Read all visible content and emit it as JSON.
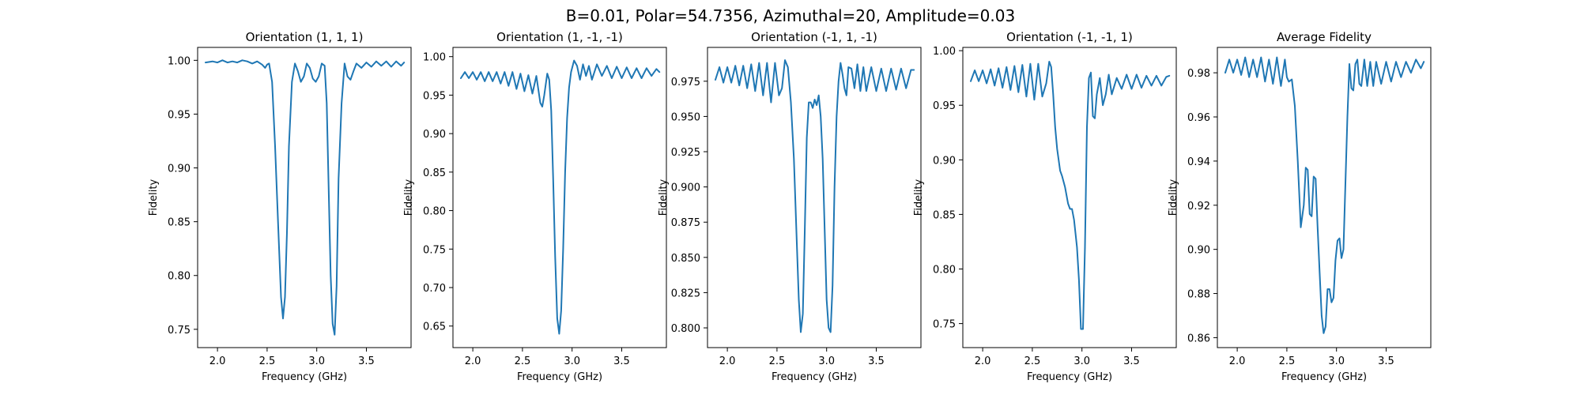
{
  "figure": {
    "suptitle": "B=0.01, Polar=54.7356, Azimuthal=20, Amplitude=0.03",
    "line_color": "#1f77b4"
  },
  "chart_data": [
    {
      "type": "line",
      "title": "Orientation (1, 1, 1)",
      "xlabel": "Frequency (GHz)",
      "ylabel": "Fidelity",
      "xlim": [
        1.8,
        3.95
      ],
      "ylim": [
        0.733,
        1.012
      ],
      "xticks": [
        2.0,
        2.5,
        3.0,
        3.5
      ],
      "xticklabels": [
        "2.0",
        "2.5",
        "3.0",
        "3.5"
      ],
      "yticks": [
        0.75,
        0.8,
        0.85,
        0.9,
        0.95,
        1.0
      ],
      "yticklabels": [
        "0.75",
        "0.80",
        "0.85",
        "0.90",
        "0.95",
        "1.00"
      ],
      "x": [
        1.88,
        1.95,
        2.0,
        2.05,
        2.1,
        2.15,
        2.2,
        2.25,
        2.3,
        2.35,
        2.4,
        2.45,
        2.48,
        2.5,
        2.52,
        2.55,
        2.58,
        2.61,
        2.64,
        2.66,
        2.68,
        2.7,
        2.72,
        2.75,
        2.78,
        2.81,
        2.84,
        2.87,
        2.9,
        2.93,
        2.96,
        2.99,
        3.02,
        3.05,
        3.08,
        3.1,
        3.12,
        3.14,
        3.16,
        3.18,
        3.2,
        3.22,
        3.25,
        3.28,
        3.31,
        3.34,
        3.37,
        3.4,
        3.45,
        3.5,
        3.55,
        3.6,
        3.65,
        3.7,
        3.75,
        3.8,
        3.85,
        3.88
      ],
      "y": [
        0.998,
        0.999,
        0.998,
        1.0,
        0.998,
        0.999,
        0.998,
        1.0,
        0.999,
        0.997,
        0.999,
        0.996,
        0.993,
        0.996,
        0.997,
        0.98,
        0.92,
        0.85,
        0.78,
        0.76,
        0.78,
        0.84,
        0.92,
        0.98,
        0.997,
        0.99,
        0.98,
        0.985,
        0.997,
        0.993,
        0.983,
        0.98,
        0.985,
        0.997,
        0.995,
        0.96,
        0.88,
        0.8,
        0.755,
        0.745,
        0.79,
        0.89,
        0.96,
        0.997,
        0.985,
        0.982,
        0.99,
        0.997,
        0.993,
        0.998,
        0.994,
        0.999,
        0.995,
        0.999,
        0.994,
        0.999,
        0.995,
        0.998
      ]
    },
    {
      "type": "line",
      "title": "Orientation (1, -1, -1)",
      "xlabel": "Frequency (GHz)",
      "ylabel": "Fidelity",
      "xlim": [
        1.8,
        3.95
      ],
      "ylim": [
        0.622,
        1.012
      ],
      "xticks": [
        2.0,
        2.5,
        3.0,
        3.5
      ],
      "xticklabels": [
        "2.0",
        "2.5",
        "3.0",
        "3.5"
      ],
      "yticks": [
        0.65,
        0.7,
        0.75,
        0.8,
        0.85,
        0.9,
        0.95,
        1.0
      ],
      "yticklabels": [
        "0.65",
        "0.70",
        "0.75",
        "0.80",
        "0.85",
        "0.90",
        "0.95",
        "1.00"
      ],
      "x": [
        1.88,
        1.92,
        1.96,
        2.0,
        2.04,
        2.08,
        2.12,
        2.16,
        2.2,
        2.24,
        2.28,
        2.32,
        2.36,
        2.4,
        2.44,
        2.48,
        2.52,
        2.56,
        2.6,
        2.64,
        2.68,
        2.7,
        2.72,
        2.75,
        2.77,
        2.79,
        2.81,
        2.83,
        2.85,
        2.87,
        2.89,
        2.91,
        2.93,
        2.95,
        2.97,
        2.99,
        3.02,
        3.05,
        3.08,
        3.11,
        3.14,
        3.17,
        3.2,
        3.25,
        3.3,
        3.35,
        3.4,
        3.45,
        3.5,
        3.55,
        3.6,
        3.65,
        3.7,
        3.75,
        3.8,
        3.85,
        3.88
      ],
      "y": [
        0.972,
        0.98,
        0.972,
        0.98,
        0.97,
        0.98,
        0.968,
        0.98,
        0.968,
        0.98,
        0.965,
        0.98,
        0.962,
        0.98,
        0.958,
        0.978,
        0.955,
        0.976,
        0.952,
        0.975,
        0.94,
        0.935,
        0.95,
        0.978,
        0.97,
        0.93,
        0.84,
        0.74,
        0.66,
        0.64,
        0.67,
        0.75,
        0.85,
        0.92,
        0.96,
        0.98,
        0.995,
        0.988,
        0.97,
        0.99,
        0.975,
        0.988,
        0.97,
        0.99,
        0.975,
        0.988,
        0.972,
        0.987,
        0.972,
        0.986,
        0.972,
        0.985,
        0.972,
        0.985,
        0.975,
        0.984,
        0.98
      ]
    },
    {
      "type": "line",
      "title": "Orientation (-1, 1, -1)",
      "xlabel": "Frequency (GHz)",
      "ylabel": "Fidelity",
      "xlim": [
        1.8,
        3.95
      ],
      "ylim": [
        0.786,
        0.999
      ],
      "xticks": [
        2.0,
        2.5,
        3.0,
        3.5
      ],
      "xticklabels": [
        "2.0",
        "2.5",
        "3.0",
        "3.5"
      ],
      "yticks": [
        0.8,
        0.825,
        0.85,
        0.875,
        0.9,
        0.925,
        0.95,
        0.975
      ],
      "yticklabels": [
        "0.800",
        "0.825",
        "0.850",
        "0.875",
        "0.900",
        "0.925",
        "0.950",
        "0.975"
      ],
      "x": [
        1.88,
        1.92,
        1.96,
        2.0,
        2.04,
        2.08,
        2.12,
        2.16,
        2.2,
        2.24,
        2.28,
        2.32,
        2.36,
        2.4,
        2.44,
        2.48,
        2.52,
        2.55,
        2.58,
        2.61,
        2.64,
        2.67,
        2.7,
        2.72,
        2.74,
        2.76,
        2.78,
        2.8,
        2.82,
        2.84,
        2.86,
        2.88,
        2.9,
        2.92,
        2.94,
        2.96,
        2.98,
        3.0,
        3.02,
        3.04,
        3.06,
        3.08,
        3.1,
        3.12,
        3.14,
        3.16,
        3.18,
        3.2,
        3.22,
        3.25,
        3.28,
        3.31,
        3.34,
        3.37,
        3.4,
        3.45,
        3.5,
        3.55,
        3.6,
        3.65,
        3.7,
        3.75,
        3.8,
        3.85,
        3.88
      ],
      "y": [
        0.976,
        0.985,
        0.974,
        0.985,
        0.974,
        0.986,
        0.972,
        0.986,
        0.97,
        0.987,
        0.968,
        0.988,
        0.965,
        0.988,
        0.96,
        0.988,
        0.965,
        0.97,
        0.99,
        0.985,
        0.96,
        0.92,
        0.86,
        0.82,
        0.797,
        0.81,
        0.87,
        0.935,
        0.96,
        0.96,
        0.956,
        0.962,
        0.958,
        0.965,
        0.95,
        0.92,
        0.87,
        0.82,
        0.8,
        0.797,
        0.83,
        0.9,
        0.95,
        0.975,
        0.988,
        0.98,
        0.97,
        0.965,
        0.985,
        0.984,
        0.97,
        0.987,
        0.968,
        0.985,
        0.968,
        0.985,
        0.968,
        0.984,
        0.968,
        0.984,
        0.969,
        0.984,
        0.97,
        0.983,
        0.983
      ]
    },
    {
      "type": "line",
      "title": "Orientation (-1, -1, 1)",
      "xlabel": "Frequency (GHz)",
      "ylabel": "Fidelity",
      "xlim": [
        1.8,
        3.95
      ],
      "ylim": [
        0.728,
        1.003
      ],
      "xticks": [
        2.0,
        2.5,
        3.0,
        3.5
      ],
      "xticklabels": [
        "2.0",
        "2.5",
        "3.0",
        "3.5"
      ],
      "yticks": [
        0.75,
        0.8,
        0.85,
        0.9,
        0.95,
        1.0
      ],
      "yticklabels": [
        "0.75",
        "0.80",
        "0.85",
        "0.90",
        "0.95",
        "1.00"
      ],
      "x": [
        1.88,
        1.92,
        1.96,
        2.0,
        2.04,
        2.08,
        2.12,
        2.16,
        2.2,
        2.24,
        2.28,
        2.32,
        2.36,
        2.4,
        2.44,
        2.48,
        2.52,
        2.56,
        2.6,
        2.64,
        2.67,
        2.69,
        2.71,
        2.73,
        2.75,
        2.78,
        2.8,
        2.83,
        2.86,
        2.88,
        2.9,
        2.92,
        2.95,
        2.97,
        2.99,
        3.01,
        3.03,
        3.05,
        3.07,
        3.09,
        3.11,
        3.13,
        3.15,
        3.18,
        3.21,
        3.24,
        3.27,
        3.3,
        3.35,
        3.4,
        3.45,
        3.5,
        3.55,
        3.6,
        3.65,
        3.7,
        3.75,
        3.8,
        3.85,
        3.88
      ],
      "y": [
        0.972,
        0.982,
        0.972,
        0.982,
        0.97,
        0.983,
        0.968,
        0.984,
        0.966,
        0.985,
        0.964,
        0.986,
        0.962,
        0.987,
        0.958,
        0.988,
        0.955,
        0.988,
        0.958,
        0.97,
        0.99,
        0.985,
        0.96,
        0.93,
        0.91,
        0.89,
        0.885,
        0.875,
        0.86,
        0.855,
        0.855,
        0.845,
        0.82,
        0.79,
        0.745,
        0.745,
        0.82,
        0.93,
        0.975,
        0.98,
        0.94,
        0.938,
        0.96,
        0.975,
        0.95,
        0.96,
        0.978,
        0.96,
        0.975,
        0.965,
        0.978,
        0.965,
        0.978,
        0.966,
        0.977,
        0.968,
        0.977,
        0.968,
        0.976,
        0.977
      ]
    },
    {
      "type": "line",
      "title": "Average Fidelity",
      "xlabel": "Frequency (GHz)",
      "ylabel": "Fidelity",
      "xlim": [
        1.8,
        3.95
      ],
      "ylim": [
        0.8555,
        0.9915
      ],
      "xticks": [
        2.0,
        2.5,
        3.0,
        3.5
      ],
      "xticklabels": [
        "2.0",
        "2.5",
        "3.0",
        "3.5"
      ],
      "yticks": [
        0.86,
        0.88,
        0.9,
        0.92,
        0.94,
        0.96,
        0.98
      ],
      "yticklabels": [
        "0.86",
        "0.88",
        "0.90",
        "0.92",
        "0.94",
        "0.96",
        "0.98"
      ],
      "x": [
        1.88,
        1.92,
        1.96,
        2.0,
        2.04,
        2.08,
        2.12,
        2.16,
        2.2,
        2.24,
        2.28,
        2.32,
        2.36,
        2.4,
        2.44,
        2.48,
        2.5,
        2.52,
        2.55,
        2.58,
        2.61,
        2.64,
        2.67,
        2.69,
        2.71,
        2.73,
        2.75,
        2.77,
        2.79,
        2.81,
        2.83,
        2.85,
        2.87,
        2.89,
        2.91,
        2.93,
        2.95,
        2.97,
        2.99,
        3.01,
        3.03,
        3.05,
        3.07,
        3.09,
        3.11,
        3.13,
        3.15,
        3.17,
        3.19,
        3.21,
        3.23,
        3.25,
        3.28,
        3.31,
        3.34,
        3.37,
        3.4,
        3.45,
        3.5,
        3.55,
        3.6,
        3.65,
        3.7,
        3.75,
        3.8,
        3.85,
        3.88
      ],
      "y": [
        0.98,
        0.986,
        0.98,
        0.986,
        0.979,
        0.987,
        0.978,
        0.986,
        0.978,
        0.987,
        0.976,
        0.986,
        0.975,
        0.987,
        0.974,
        0.986,
        0.978,
        0.976,
        0.977,
        0.965,
        0.94,
        0.91,
        0.92,
        0.937,
        0.936,
        0.916,
        0.915,
        0.933,
        0.932,
        0.91,
        0.89,
        0.87,
        0.862,
        0.865,
        0.882,
        0.882,
        0.876,
        0.878,
        0.895,
        0.904,
        0.905,
        0.896,
        0.9,
        0.93,
        0.96,
        0.984,
        0.973,
        0.972,
        0.984,
        0.986,
        0.975,
        0.974,
        0.986,
        0.974,
        0.985,
        0.974,
        0.985,
        0.975,
        0.985,
        0.976,
        0.985,
        0.978,
        0.985,
        0.98,
        0.986,
        0.982,
        0.985
      ]
    }
  ]
}
